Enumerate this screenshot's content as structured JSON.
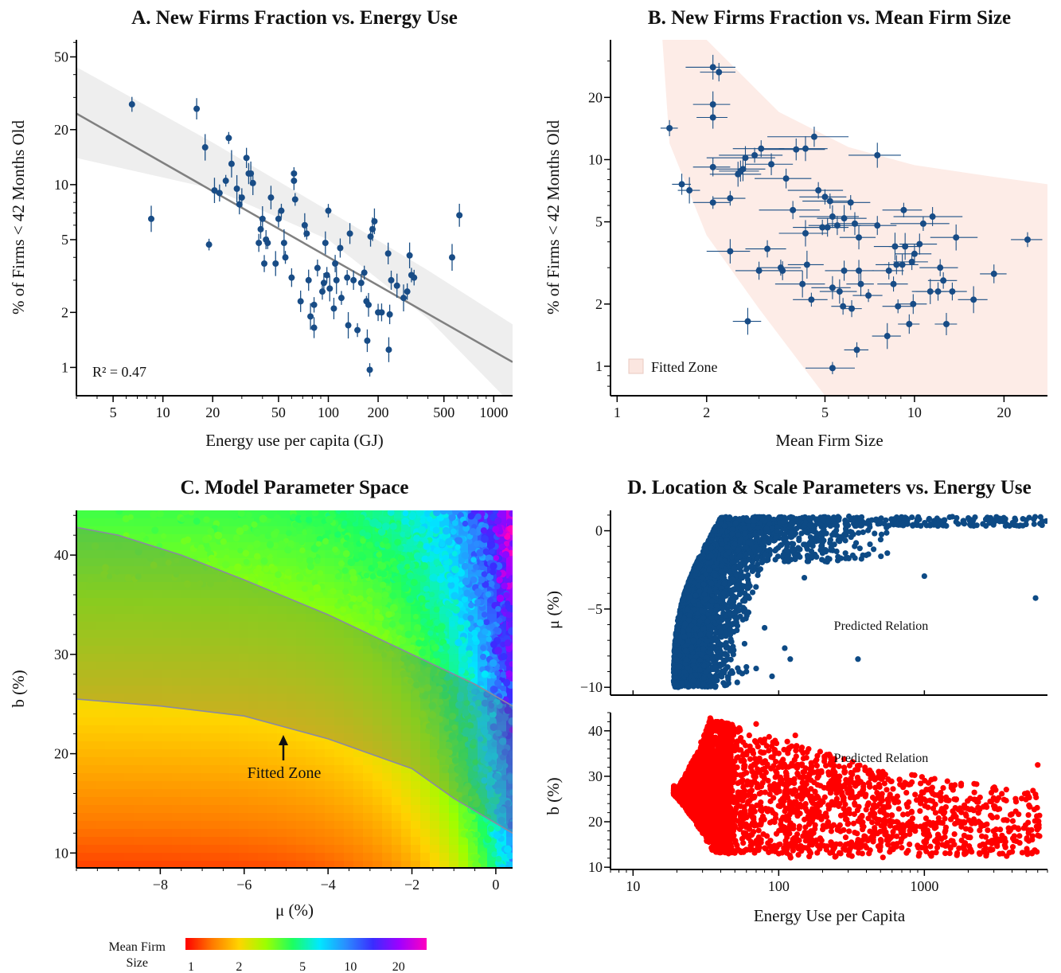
{
  "chart_data": [
    {
      "type": "scatter",
      "title": "A.  New Firms Fraction vs. Energy Use",
      "xlabel": "Energy use per capita (GJ)",
      "ylabel": "% of Firms < 42 Months Old",
      "xscale": "log",
      "yscale": "log",
      "xlim": [
        3,
        1300
      ],
      "ylim": [
        0.7,
        62
      ],
      "xticks": [
        "5",
        "10",
        "20",
        "50",
        "100",
        "200",
        "500",
        "1000"
      ],
      "yticks": [
        "1",
        "2",
        "5",
        "10",
        "20",
        "50"
      ],
      "annotation": "R² = 0.47",
      "regression": {
        "x": [
          3,
          1300
        ],
        "y": [
          24.5,
          1.07
        ]
      },
      "band": {
        "x": [
          3,
          20,
          100,
          400,
          1300
        ],
        "upper": [
          44,
          17,
          7.2,
          3.4,
          1.72
        ],
        "lower": [
          14,
          9.5,
          5.0,
          1.85,
          0.62
        ]
      },
      "points": [
        [
          6.5,
          27.5
        ],
        [
          8.5,
          6.5
        ],
        [
          16,
          26
        ],
        [
          18,
          16
        ],
        [
          19,
          4.7
        ],
        [
          20.5,
          9.3
        ],
        [
          22,
          9
        ],
        [
          24,
          10.5
        ],
        [
          25,
          18
        ],
        [
          26,
          13
        ],
        [
          28,
          9.5
        ],
        [
          29,
          7.8
        ],
        [
          30,
          8.5
        ],
        [
          32,
          14
        ],
        [
          33,
          11.5
        ],
        [
          34,
          11.5
        ],
        [
          35,
          10.2
        ],
        [
          38,
          4.8
        ],
        [
          39,
          5.7
        ],
        [
          40,
          6.5
        ],
        [
          41,
          3.7
        ],
        [
          42,
          5
        ],
        [
          43,
          4.8
        ],
        [
          45,
          8.5
        ],
        [
          48,
          3.7
        ],
        [
          50,
          6.5
        ],
        [
          52,
          7.2
        ],
        [
          54,
          4.8
        ],
        [
          55,
          4
        ],
        [
          60,
          3.1
        ],
        [
          62,
          10.5
        ],
        [
          62,
          11.5
        ],
        [
          63,
          8.3
        ],
        [
          68,
          2.3
        ],
        [
          72,
          6
        ],
        [
          74,
          5.4
        ],
        [
          76,
          3
        ],
        [
          78,
          1.9
        ],
        [
          82,
          2.2
        ],
        [
          82,
          1.65
        ],
        [
          86,
          3.5
        ],
        [
          92,
          2.6
        ],
        [
          94,
          2.9
        ],
        [
          96,
          4.8
        ],
        [
          98,
          3.2
        ],
        [
          100,
          7.2
        ],
        [
          102,
          2.7
        ],
        [
          108,
          2.1
        ],
        [
          110,
          3.7
        ],
        [
          112,
          3.0
        ],
        [
          118,
          4.5
        ],
        [
          120,
          2.4
        ],
        [
          130,
          3.1
        ],
        [
          132,
          1.7
        ],
        [
          135,
          5.4
        ],
        [
          142,
          3
        ],
        [
          150,
          1.6
        ],
        [
          158,
          2.9
        ],
        [
          165,
          3.3
        ],
        [
          170,
          2.3
        ],
        [
          172,
          1.4
        ],
        [
          175,
          2.2
        ],
        [
          178,
          0.97
        ],
        [
          180,
          5.2
        ],
        [
          185,
          5.7
        ],
        [
          190,
          6.3
        ],
        [
          200,
          2
        ],
        [
          210,
          2
        ],
        [
          230,
          4.2
        ],
        [
          232,
          1.25
        ],
        [
          235,
          1.95
        ],
        [
          240,
          3
        ],
        [
          260,
          2.8
        ],
        [
          285,
          2.4
        ],
        [
          300,
          2.6
        ],
        [
          310,
          4.1
        ],
        [
          318,
          3.2
        ],
        [
          330,
          3.1
        ],
        [
          560,
          4
        ],
        [
          620,
          6.8
        ]
      ]
    },
    {
      "type": "scatter",
      "title": "B.  New Firms Fraction vs. Mean Firm Size",
      "xlabel": "Mean Firm Size",
      "ylabel": "% of Firms < 42 Months Old",
      "xscale": "log",
      "yscale": "log",
      "xlim": [
        0.95,
        28
      ],
      "ylim": [
        0.72,
        38
      ],
      "xticks": [
        "1",
        "2",
        "5",
        "10",
        "20"
      ],
      "yticks": [
        "1",
        "2",
        "5",
        "10",
        "20"
      ],
      "legend": "Fitted Zone",
      "zone": {
        "upper": [
          [
            1.42,
            38
          ],
          [
            2.0,
            38
          ],
          [
            3.5,
            17
          ],
          [
            6,
            11.5
          ],
          [
            10,
            9.4
          ],
          [
            18,
            8.3
          ],
          [
            28,
            7.6
          ]
        ],
        "lower": [
          [
            1.42,
            38
          ],
          [
            1.5,
            12
          ],
          [
            2.0,
            4.3
          ],
          [
            3.0,
            1.9
          ],
          [
            5.0,
            0.72
          ]
        ]
      },
      "points": [
        [
          1.5,
          14.2,
          0.1
        ],
        [
          1.65,
          7.6,
          0.12
        ],
        [
          1.75,
          7.1,
          0.15
        ],
        [
          2.1,
          28,
          0.4
        ],
        [
          2.2,
          26.5,
          0.3
        ],
        [
          2.1,
          18.5,
          0.3
        ],
        [
          2.1,
          16,
          0.25
        ],
        [
          2.1,
          9.2,
          0.3
        ],
        [
          2.1,
          6.2,
          0.3
        ],
        [
          2.4,
          3.6,
          0.4
        ],
        [
          2.4,
          6.5,
          0.3
        ],
        [
          2.55,
          8.5,
          0.5
        ],
        [
          2.6,
          8.8,
          0.4
        ],
        [
          2.65,
          9.0,
          0.5
        ],
        [
          2.7,
          10.2,
          0.7
        ],
        [
          2.75,
          1.65,
          0.3
        ],
        [
          2.9,
          10.5,
          0.7
        ],
        [
          3.0,
          2.9,
          0.5
        ],
        [
          3.05,
          11.3,
          0.6
        ],
        [
          3.2,
          3.7,
          0.5
        ],
        [
          3.3,
          9.5,
          0.6
        ],
        [
          3.55,
          3.0,
          0.6
        ],
        [
          3.6,
          2.9,
          0.6
        ],
        [
          3.7,
          8.1,
          0.8
        ],
        [
          3.9,
          5.7,
          0.9
        ],
        [
          4.0,
          11.2,
          1.0
        ],
        [
          4.3,
          11.3,
          0.8
        ],
        [
          4.2,
          2.5,
          0.8
        ],
        [
          4.3,
          4.4,
          0.8
        ],
        [
          4.35,
          3.1,
          0.6
        ],
        [
          4.5,
          2.1,
          0.6
        ],
        [
          4.6,
          12.9,
          1.4
        ],
        [
          4.75,
          7.1,
          1.0
        ],
        [
          4.9,
          4.7,
          1.0
        ],
        [
          5.0,
          6.6,
          0.9
        ],
        [
          5.1,
          4.7,
          0.9
        ],
        [
          5.2,
          6.3,
          1.0
        ],
        [
          5.3,
          5.3,
          1.2
        ],
        [
          5.3,
          2.4,
          0.8
        ],
        [
          5.3,
          0.98,
          1.0
        ],
        [
          5.5,
          4.8,
          1.1
        ],
        [
          5.6,
          2.3,
          0.8
        ],
        [
          5.75,
          1.95,
          0.5
        ],
        [
          5.8,
          2.9,
          0.8
        ],
        [
          5.8,
          5.2,
          1.1
        ],
        [
          6.1,
          6.2,
          1.0
        ],
        [
          6.15,
          1.9,
          0.5
        ],
        [
          6.3,
          4.9,
          1.2
        ],
        [
          6.4,
          1.2,
          0.6
        ],
        [
          6.5,
          2.9,
          0.8
        ],
        [
          6.5,
          4.2,
          0.9
        ],
        [
          6.6,
          2.5,
          0.7
        ],
        [
          7.0,
          2.2,
          0.8
        ],
        [
          7.5,
          10.5,
          1.5
        ],
        [
          7.5,
          4.8,
          1.2
        ],
        [
          8.1,
          1.4,
          0.9
        ],
        [
          8.2,
          2.9,
          1.0
        ],
        [
          8.5,
          2.5,
          1.0
        ],
        [
          8.6,
          3.8,
          1.3
        ],
        [
          8.7,
          3.1,
          1.3
        ],
        [
          8.8,
          1.95,
          1.0
        ],
        [
          9.1,
          3.1,
          1.2
        ],
        [
          9.2,
          5.7,
          1.4
        ],
        [
          9.3,
          3.8,
          1.1
        ],
        [
          9.6,
          1.6,
          0.8
        ],
        [
          9.8,
          3.2,
          1.3
        ],
        [
          9.9,
          2.0,
          1.1
        ],
        [
          10.0,
          3.5,
          1.4
        ],
        [
          10.4,
          3.9,
          1.5
        ],
        [
          10.7,
          4.9,
          2.4
        ],
        [
          11.3,
          2.3,
          1.5
        ],
        [
          11.5,
          5.3,
          3.0
        ],
        [
          12.0,
          2.3,
          1.9
        ],
        [
          12.2,
          3.0,
          1.8
        ],
        [
          12.5,
          2.6,
          1.4
        ],
        [
          12.8,
          1.6,
          1.1
        ],
        [
          13.4,
          2.3,
          1.6
        ],
        [
          13.8,
          4.2,
          2.5
        ],
        [
          15.8,
          2.1,
          1.8
        ],
        [
          18.5,
          2.8,
          1.9
        ],
        [
          24.0,
          4.1,
          2.9
        ]
      ]
    },
    {
      "type": "heatmap",
      "title": "C.  Model Parameter Space",
      "xlabel": "μ  (%)",
      "ylabel": "b  (%)",
      "xlim": [
        -10,
        0.4
      ],
      "ylim": [
        8.5,
        44.5
      ],
      "xticks": [
        "−8",
        "−6",
        "−4",
        "−2",
        "0"
      ],
      "yticks": [
        "10",
        "20",
        "30",
        "40"
      ],
      "annotation": "Fitted Zone",
      "colorbar": {
        "label": "Mean Firm Size",
        "ticks": [
          "1",
          "2",
          "5",
          "10",
          "20"
        ],
        "colors": [
          "#ff0000",
          "#ff7a00",
          "#ffd400",
          "#9cff00",
          "#1cff60",
          "#00e8ff",
          "#2a8cff",
          "#3a2cff",
          "#a000ff",
          "#ff00c0"
        ]
      },
      "zone_upper": [
        [
          -10,
          42.8
        ],
        [
          -9,
          42
        ],
        [
          -7.5,
          40
        ],
        [
          -6,
          37.5
        ],
        [
          -4,
          34
        ],
        [
          -2,
          30
        ],
        [
          -0.5,
          27
        ],
        [
          0.4,
          24.8
        ]
      ],
      "zone_lower": [
        [
          -10,
          25.5
        ],
        [
          -8,
          24.8
        ],
        [
          -6,
          23.8
        ],
        [
          -4,
          21.5
        ],
        [
          -2,
          18.5
        ],
        [
          -1,
          15.5
        ],
        [
          0.4,
          12.0
        ]
      ]
    },
    {
      "type": "scatter",
      "title": "D.  Location & Scale Parameters vs. Energy Use",
      "xlabel": "Energy Use per Capita",
      "xscale": "log",
      "xlim": [
        7,
        7000
      ],
      "xticks": [
        "10",
        "100",
        "1000"
      ],
      "panels": [
        {
          "ylabel": "μ  (%)",
          "ylim": [
            -10.5,
            1.3
          ],
          "yticks": [
            "0",
            "−5",
            "−10"
          ],
          "color": "#0d4a85",
          "annotation": "Predicted Relation"
        },
        {
          "ylabel": "b  (%)",
          "ylim": [
            9.5,
            44
          ],
          "yticks": [
            "10",
            "20",
            "30",
            "40"
          ],
          "color": "#ff0000",
          "annotation": "Predicted Relation"
        }
      ]
    }
  ]
}
